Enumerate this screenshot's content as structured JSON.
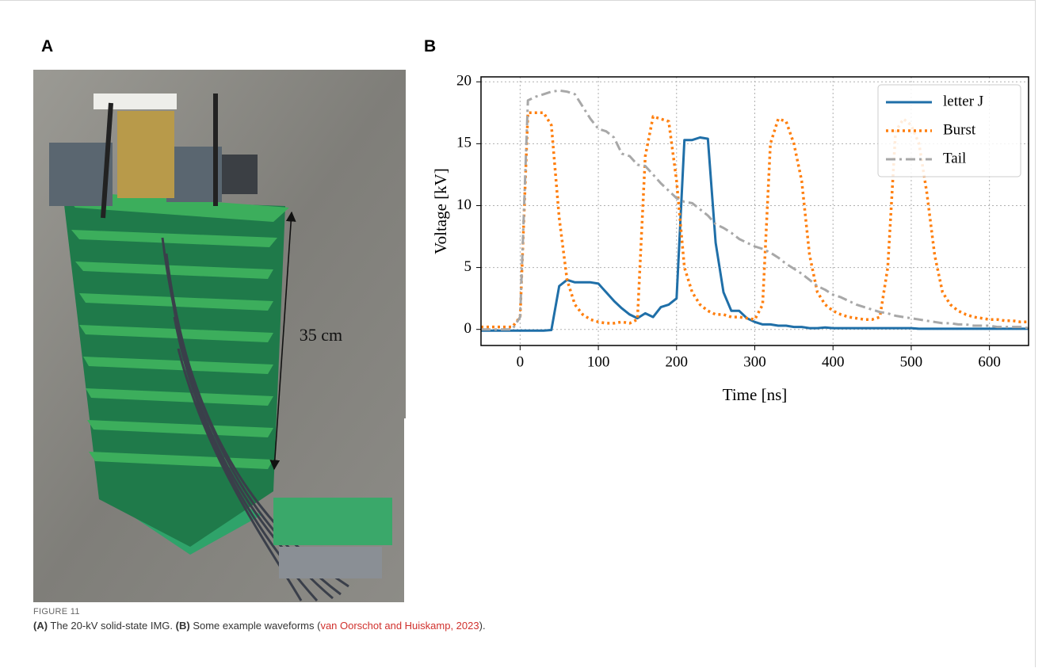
{
  "panels": [
    {
      "label": "A",
      "annotation": "35 cm"
    },
    {
      "label": "B"
    }
  ],
  "caption": {
    "figure": "FIGURE 11",
    "part_a_label": "(A)",
    "part_a_text": " The 20-kV solid-state IMG. ",
    "part_b_label": "(B)",
    "part_b_text": " Some example waveforms (",
    "reference": "van Oorschot and Huiskamp, 2023",
    "end": ")."
  },
  "chart_data": {
    "type": "line",
    "x_label": "Time [ns]",
    "y_label": "Voltage [kV]",
    "x": [
      -50,
      -40,
      -30,
      -20,
      -10,
      0,
      10,
      20,
      30,
      40,
      50,
      60,
      70,
      80,
      90,
      100,
      110,
      120,
      130,
      140,
      150,
      160,
      170,
      180,
      190,
      200,
      210,
      220,
      230,
      240,
      250,
      260,
      270,
      280,
      290,
      300,
      310,
      320,
      330,
      340,
      350,
      360,
      370,
      380,
      390,
      400,
      410,
      420,
      430,
      440,
      450,
      460,
      470,
      480,
      490,
      500,
      510,
      520,
      530,
      540,
      550,
      560,
      570,
      580,
      590,
      600,
      610,
      620,
      630,
      640,
      650
    ],
    "series": [
      {
        "name": "letter J",
        "color": "#1f6fa8",
        "linestyle": "solid",
        "values": [
          -0.1,
          -0.1,
          -0.1,
          -0.1,
          -0.1,
          -0.1,
          -0.1,
          -0.1,
          -0.1,
          -0.05,
          3.5,
          4.0,
          3.8,
          3.8,
          3.8,
          3.7,
          3.0,
          2.3,
          1.7,
          1.2,
          0.9,
          1.3,
          1.0,
          1.8,
          2.0,
          2.5,
          15.3,
          15.3,
          15.5,
          15.4,
          7,
          3,
          1.5,
          1.5,
          0.9,
          0.6,
          0.4,
          0.4,
          0.3,
          0.3,
          0.2,
          0.2,
          0.1,
          0.1,
          0.15,
          0.1,
          0.1,
          0.1,
          0.1,
          0.1,
          0.1,
          0.1,
          0.1,
          0.1,
          0.1,
          0.1,
          0.05,
          0.05,
          0.05,
          0.05,
          0.05,
          0.05,
          0.05,
          0.05,
          0.05,
          0.05,
          0.05,
          0.05,
          0.05,
          0.05,
          0.05
        ]
      },
      {
        "name": "Burst",
        "color": "#ff7f0e",
        "linestyle": "dotted",
        "values": [
          0.2,
          0.2,
          0.2,
          0.2,
          0.2,
          1,
          17.5,
          17.5,
          17.5,
          16.5,
          9,
          4,
          2,
          1.2,
          0.8,
          0.6,
          0.5,
          0.5,
          0.6,
          0.5,
          0.8,
          14,
          17.2,
          17,
          16.8,
          12,
          5,
          3,
          2,
          1.5,
          1.2,
          1.2,
          1.0,
          1.0,
          0.9,
          0.8,
          2,
          15,
          17,
          16.8,
          15,
          12,
          6,
          3,
          2,
          1.5,
          1.2,
          1.0,
          0.9,
          0.8,
          0.8,
          1,
          5,
          16,
          17,
          16.5,
          15,
          11,
          6,
          3,
          2,
          1.5,
          1.2,
          1.0,
          0.9,
          0.8,
          0.8,
          0.7,
          0.7,
          0.6,
          0.6
        ]
      },
      {
        "name": "Tail",
        "color": "#a8a8a8",
        "linestyle": "dashdot",
        "values": [
          0,
          0,
          0,
          0,
          0,
          1,
          18.5,
          18.8,
          19,
          19.2,
          19.3,
          19.2,
          19,
          18,
          17,
          16.2,
          16,
          15.5,
          14.2,
          14,
          13.3,
          13.2,
          12.5,
          11.8,
          11.2,
          10.6,
          10.3,
          10.2,
          9.7,
          9.2,
          8.5,
          8.2,
          7.8,
          7.3,
          7,
          6.7,
          6.5,
          6.2,
          5.8,
          5.3,
          4.9,
          4.5,
          4.0,
          3.5,
          3.2,
          2.8,
          2.6,
          2.3,
          2.0,
          1.8,
          1.6,
          1.4,
          1.3,
          1.1,
          1.0,
          0.9,
          0.8,
          0.7,
          0.6,
          0.5,
          0.5,
          0.4,
          0.4,
          0.3,
          0.3,
          0.3,
          0.2,
          0.2,
          0.2,
          0.2,
          0.1
        ]
      }
    ],
    "xlim": [
      -50,
      650
    ],
    "ylim": [
      -1.3,
      20.4
    ],
    "xticks": [
      0,
      100,
      200,
      300,
      400,
      500,
      600
    ],
    "yticks": [
      0,
      5,
      10,
      15,
      20
    ],
    "grid": true,
    "legend": "upper right"
  }
}
